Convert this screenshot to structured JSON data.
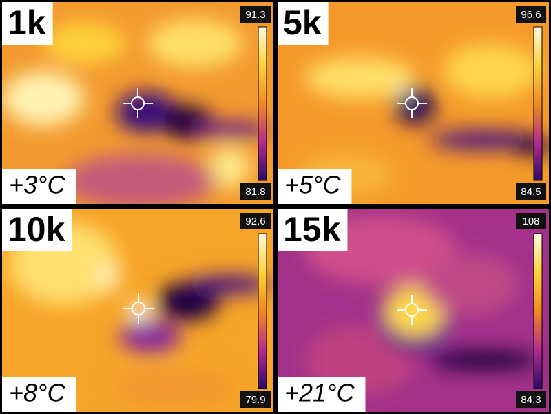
{
  "panels": [
    {
      "title": "1k",
      "delta": "+3°C",
      "max": 91.3,
      "min": 81.8
    },
    {
      "title": "5k",
      "delta": "+5°C",
      "max": 96.6,
      "min": 84.5
    },
    {
      "title": "10k",
      "delta": "+8°C",
      "max": 92.6,
      "min": 79.9
    },
    {
      "title": "15k",
      "delta": "+21°C",
      "max": 108,
      "min": 84.3
    }
  ]
}
